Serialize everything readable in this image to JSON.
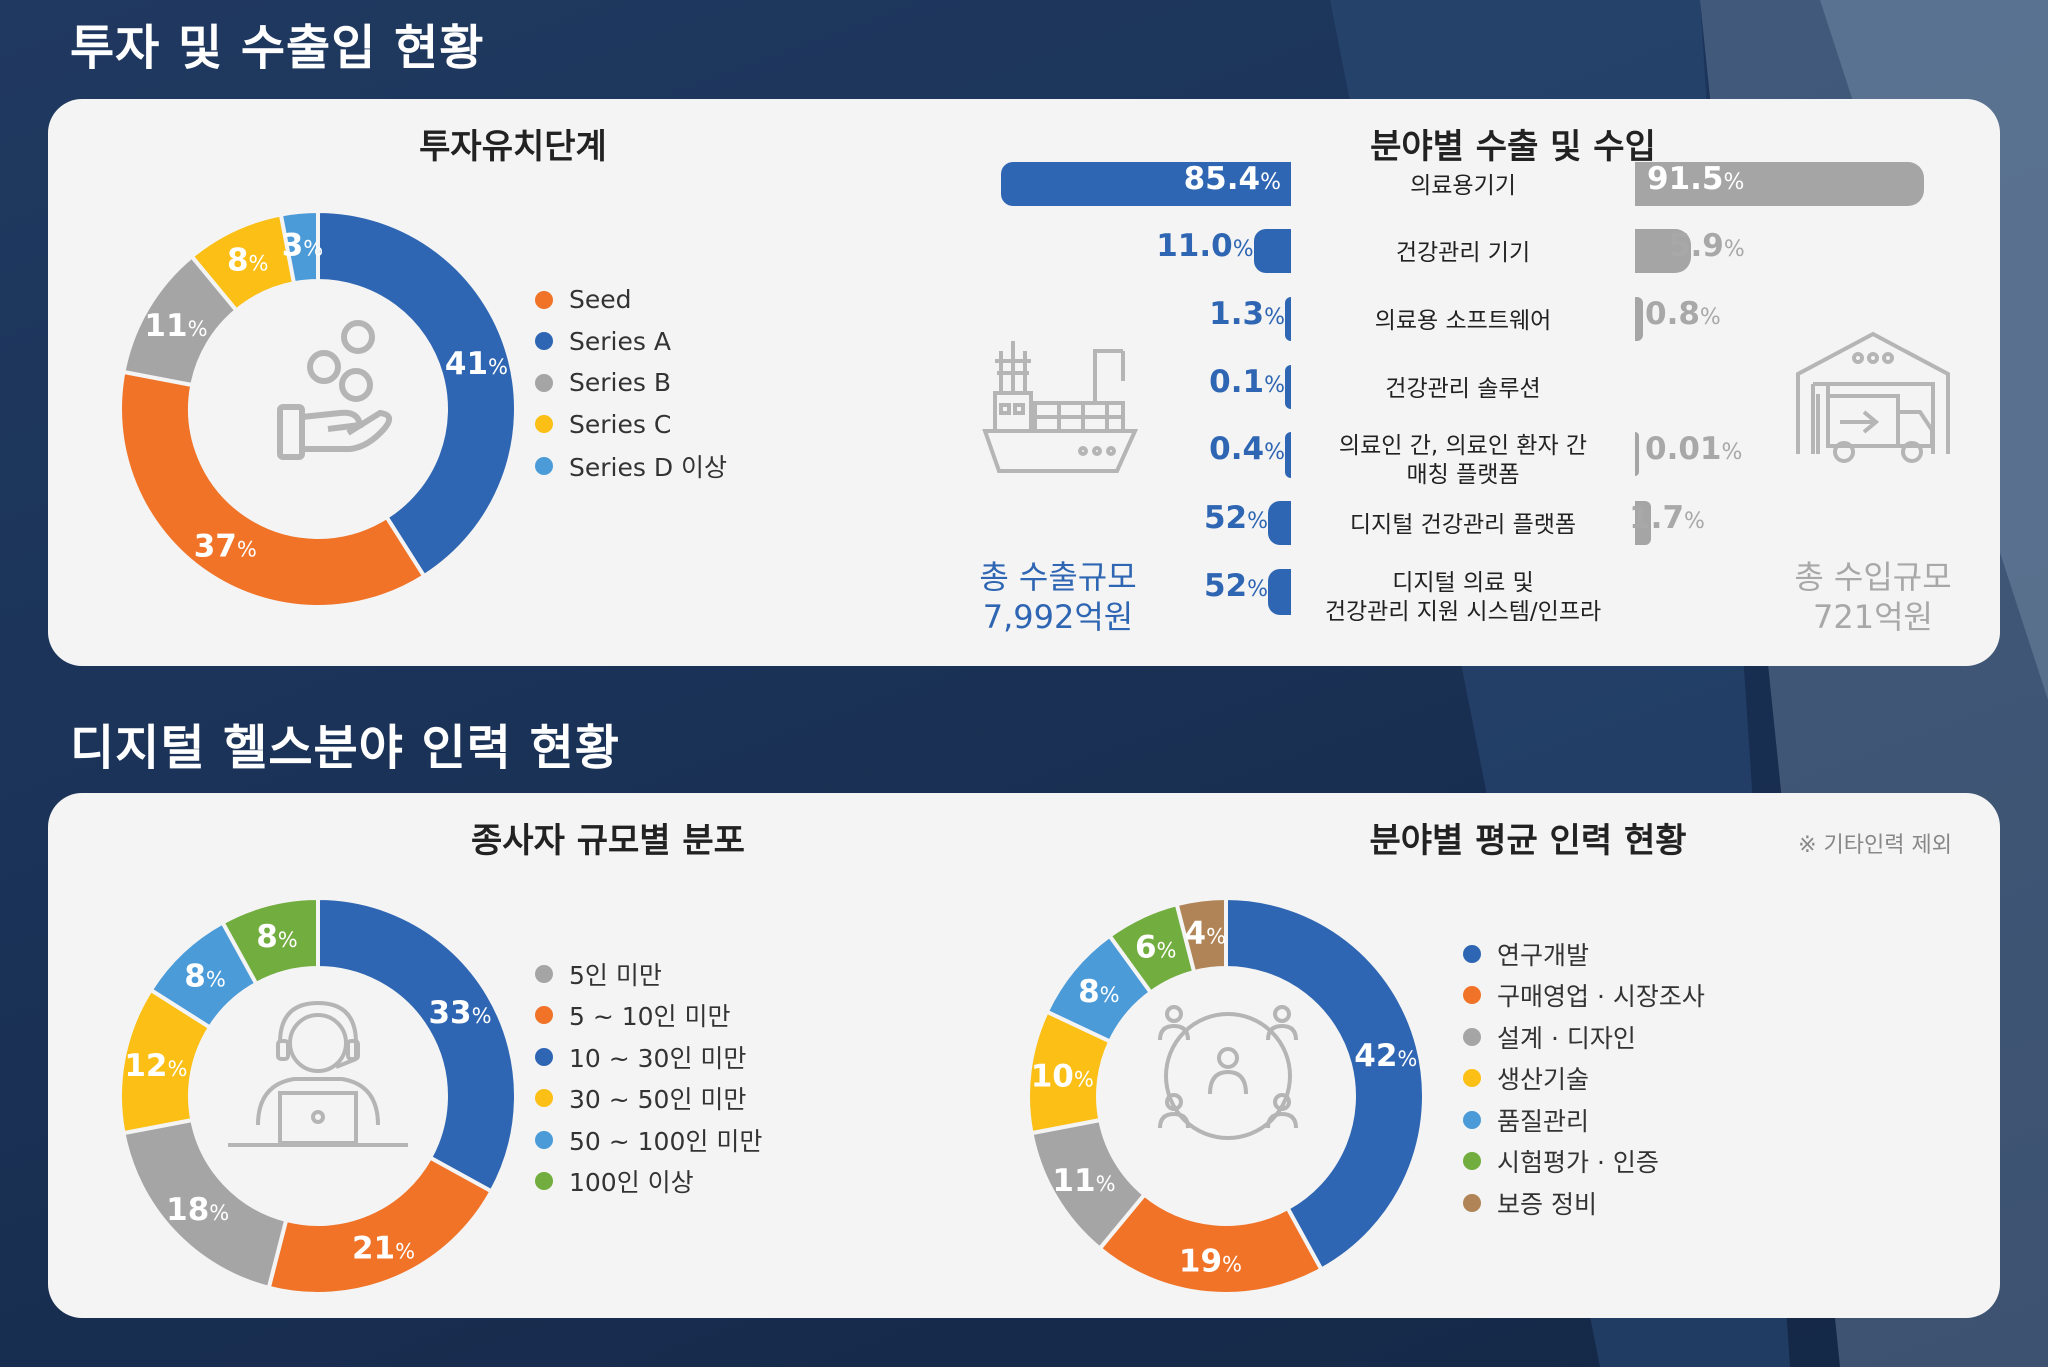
{
  "section1_title": "투자 및 수출입 현황",
  "section2_title": "디지털 헬스분야 인력 현황",
  "colors": {
    "blue": "#2f66b3",
    "orange": "#f07328",
    "gray": "#a5a5a5",
    "yellow": "#fbbf16",
    "light_blue": "#4c9bd9",
    "green": "#72ad3f",
    "brown": "#b08456",
    "panel": "#f4f4f4"
  },
  "investment": {
    "title": "투자유치단계",
    "icon": "coins-hand-icon"
  },
  "trade": {
    "title": "분야별 수출 및 수입",
    "export_total_label": "총 수출규모",
    "export_total_value": "7,992억원",
    "import_total_label": "총 수입규모",
    "import_total_value": "721억원",
    "export_icon": "cargo-ship-icon",
    "import_icon": "warehouse-truck-icon",
    "rows": [
      {
        "category": "의료용기기",
        "export_num": "85.4",
        "import_num": "91.5"
      },
      {
        "category": "건강관리 기기",
        "export_num": "11.0",
        "import_num": "5.9"
      },
      {
        "category": "의료용 소프트웨어",
        "export_num": "1.3",
        "import_num": "0.8"
      },
      {
        "category": "건강관리 솔루션",
        "export_num": "0.1",
        "import_num": ""
      },
      {
        "category": "의료인 간, 의료인 환자 간\n매칭 플랫폼",
        "export_num": "0.4",
        "import_num": "0.01"
      },
      {
        "category": "디지털 건강관리 플랫폼",
        "export_num": "52",
        "import_num": "1.7"
      },
      {
        "category": "디지털 의료 및\n건강관리 지원 시스템/인프라",
        "export_num": "52",
        "import_num": ""
      }
    ]
  },
  "employees": {
    "title": "종사자 규모별 분포",
    "icon": "worker-laptop-icon"
  },
  "workforce": {
    "title": "분야별 평균 인력 현황",
    "note": "※ 기타인력 제외",
    "icon": "people-network-icon"
  },
  "chart_data": [
    {
      "type": "pie",
      "title": "투자유치단계",
      "categories": [
        "Seed",
        "Series A",
        "Series B",
        "Series C",
        "Series D 이상"
      ],
      "values": [
        37,
        41,
        11,
        8,
        3
      ],
      "colors": [
        "#f07328",
        "#2f66b3",
        "#a5a5a5",
        "#fbbf16",
        "#4c9bd9"
      ],
      "order": [
        1,
        0,
        2,
        3,
        4
      ],
      "legend": "right",
      "unit": "%"
    },
    {
      "type": "bar",
      "title": "분야별 수출 및 수입",
      "categories": [
        "의료용기기",
        "건강관리 기기",
        "의료용 소프트웨어",
        "건강관리 솔루션",
        "의료인 간, 의료인 환자 간 매칭 플랫폼",
        "디지털 건강관리 플랫폼",
        "디지털 의료 및 건강관리 지원 시스템/인프라"
      ],
      "series": [
        {
          "values": [
            85.4,
            11.0,
            1.3,
            0.1,
            0.4,
            52,
            52
          ],
          "color": "#2f66b3"
        },
        {
          "values": [
            91.5,
            5.9,
            0.8,
            null,
            0.01,
            1.7,
            null
          ],
          "color": "#a5a5a5"
        }
      ],
      "unit": "%"
    },
    {
      "type": "pie",
      "title": "종사자 규모별 분포",
      "categories": [
        "5인 미만",
        "5 ~ 10인 미만",
        "10 ~ 30인 미만",
        "30 ~ 50인 미만",
        "50 ~ 100인 미만",
        "100인 이상"
      ],
      "values": [
        18,
        21,
        33,
        12,
        8,
        8
      ],
      "colors": [
        "#a5a5a5",
        "#f07328",
        "#2f66b3",
        "#fbbf16",
        "#4c9bd9",
        "#72ad3f"
      ],
      "order": [
        2,
        1,
        0,
        3,
        4,
        5
      ],
      "legend": "right",
      "unit": "%"
    },
    {
      "type": "pie",
      "title": "분야별 평균 인력 현황",
      "categories": [
        "연구개발",
        "구매영업 · 시장조사",
        "설계 · 디자인",
        "생산기술",
        "품질관리",
        "시험평가 · 인증",
        "보증 정비"
      ],
      "values": [
        42,
        19,
        11,
        10,
        8,
        6,
        4
      ],
      "colors": [
        "#2f66b3",
        "#f07328",
        "#a5a5a5",
        "#fbbf16",
        "#4c9bd9",
        "#72ad3f",
        "#b08456"
      ],
      "order": [
        0,
        1,
        2,
        3,
        4,
        5,
        6
      ],
      "legend": "right",
      "unit": "%"
    }
  ]
}
